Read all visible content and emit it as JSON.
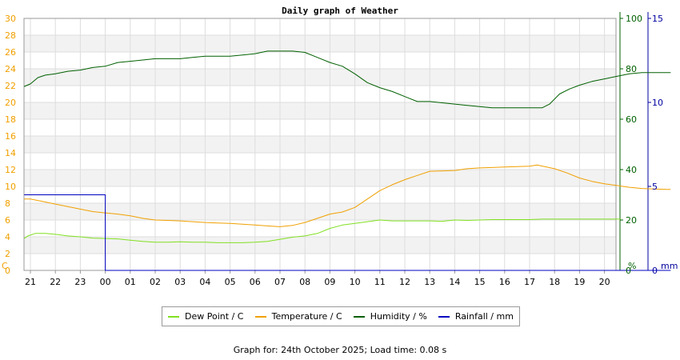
{
  "chart_data": {
    "type": "line",
    "title": "Daily graph of Weather",
    "x_tick_labels": [
      "21",
      "22",
      "23",
      "00",
      "01",
      "02",
      "03",
      "04",
      "05",
      "06",
      "07",
      "08",
      "09",
      "10",
      "11",
      "12",
      "13",
      "14",
      "15",
      "16",
      "17",
      "18",
      "19",
      "20"
    ],
    "left_axis": {
      "unit": "C",
      "ticks": [
        0,
        2,
        4,
        6,
        8,
        10,
        12,
        14,
        16,
        18,
        20,
        22,
        24,
        26,
        28,
        30
      ],
      "ylim": [
        0,
        30
      ],
      "color": "#f0a000"
    },
    "humidity_axis": {
      "unit": "%",
      "ticks": [
        0,
        20,
        40,
        60,
        80,
        100
      ],
      "ylim": [
        0,
        100
      ],
      "color": "#006000"
    },
    "rain_axis": {
      "unit": "mm",
      "ticks": [
        0,
        5,
        10,
        15
      ],
      "ylim": [
        0,
        15
      ],
      "color": "#0000a0"
    },
    "grid": true,
    "legend_position": "bottom",
    "series": [
      {
        "name": "Dew Point / C",
        "color": "#80e020",
        "axis": "left",
        "points": [
          [
            -0.25,
            3.8
          ],
          [
            -0.1,
            4.1
          ],
          [
            0.2,
            4.4
          ],
          [
            0.6,
            4.4
          ],
          [
            1.0,
            4.3
          ],
          [
            1.5,
            4.1
          ],
          [
            2.0,
            4.0
          ],
          [
            2.5,
            3.85
          ],
          [
            3.0,
            3.8
          ],
          [
            3.5,
            3.75
          ],
          [
            4.0,
            3.6
          ],
          [
            4.5,
            3.45
          ],
          [
            5.0,
            3.35
          ],
          [
            5.5,
            3.35
          ],
          [
            6.0,
            3.4
          ],
          [
            6.5,
            3.35
          ],
          [
            7.0,
            3.35
          ],
          [
            7.5,
            3.3
          ],
          [
            8.0,
            3.3
          ],
          [
            8.5,
            3.3
          ],
          [
            9.0,
            3.35
          ],
          [
            9.5,
            3.45
          ],
          [
            10.0,
            3.7
          ],
          [
            10.5,
            3.95
          ],
          [
            11.0,
            4.1
          ],
          [
            11.5,
            4.4
          ],
          [
            12.0,
            5.0
          ],
          [
            12.5,
            5.4
          ],
          [
            13.0,
            5.6
          ],
          [
            13.5,
            5.8
          ],
          [
            14.0,
            6.0
          ],
          [
            14.5,
            5.9
          ],
          [
            15.0,
            5.9
          ],
          [
            15.5,
            5.9
          ],
          [
            16.0,
            5.9
          ],
          [
            16.5,
            5.85
          ],
          [
            17.0,
            6.0
          ],
          [
            17.5,
            5.95
          ],
          [
            18.0,
            6.0
          ],
          [
            18.5,
            6.05
          ],
          [
            19.0,
            6.05
          ],
          [
            19.5,
            6.05
          ],
          [
            20.0,
            6.05
          ],
          [
            20.5,
            6.1
          ],
          [
            21.0,
            6.1
          ],
          [
            21.5,
            6.1
          ],
          [
            22.0,
            6.1
          ],
          [
            22.5,
            6.1
          ],
          [
            23.0,
            6.1
          ],
          [
            23.65,
            6.1
          ]
        ]
      },
      {
        "name": "Temperature / C",
        "color": "#f0a000",
        "axis": "left",
        "points": [
          [
            -0.25,
            8.5
          ],
          [
            0.0,
            8.5
          ],
          [
            0.5,
            8.2
          ],
          [
            1.0,
            7.9
          ],
          [
            1.5,
            7.6
          ],
          [
            2.0,
            7.3
          ],
          [
            2.5,
            7.0
          ],
          [
            3.0,
            6.85
          ],
          [
            3.5,
            6.7
          ],
          [
            4.0,
            6.5
          ],
          [
            4.5,
            6.2
          ],
          [
            5.0,
            6.0
          ],
          [
            5.5,
            5.95
          ],
          [
            6.0,
            5.9
          ],
          [
            6.5,
            5.8
          ],
          [
            7.0,
            5.7
          ],
          [
            7.5,
            5.65
          ],
          [
            8.0,
            5.6
          ],
          [
            8.5,
            5.5
          ],
          [
            9.0,
            5.4
          ],
          [
            9.5,
            5.3
          ],
          [
            10.0,
            5.2
          ],
          [
            10.5,
            5.35
          ],
          [
            11.0,
            5.7
          ],
          [
            11.5,
            6.2
          ],
          [
            12.0,
            6.7
          ],
          [
            12.5,
            6.95
          ],
          [
            13.0,
            7.5
          ],
          [
            13.5,
            8.5
          ],
          [
            14.0,
            9.5
          ],
          [
            14.5,
            10.2
          ],
          [
            15.0,
            10.8
          ],
          [
            15.5,
            11.3
          ],
          [
            16.0,
            11.8
          ],
          [
            16.5,
            11.85
          ],
          [
            17.0,
            11.9
          ],
          [
            17.5,
            12.1
          ],
          [
            18.0,
            12.2
          ],
          [
            18.5,
            12.25
          ],
          [
            19.0,
            12.3
          ],
          [
            19.5,
            12.35
          ],
          [
            20.0,
            12.4
          ],
          [
            20.3,
            12.55
          ],
          [
            20.6,
            12.35
          ],
          [
            21.0,
            12.1
          ],
          [
            21.5,
            11.6
          ],
          [
            22.0,
            11.0
          ],
          [
            22.5,
            10.6
          ],
          [
            23.0,
            10.3
          ],
          [
            23.5,
            10.1
          ],
          [
            24.0,
            9.9
          ],
          [
            24.5,
            9.75
          ],
          [
            25.0,
            9.7
          ],
          [
            25.5,
            9.65
          ],
          [
            25.65,
            9.65
          ]
        ]
      },
      {
        "name": "Humidity / %",
        "color": "#006000",
        "axis": "humidity",
        "points": [
          [
            -0.25,
            73.0
          ],
          [
            0.0,
            74.0
          ],
          [
            0.3,
            76.5
          ],
          [
            0.6,
            77.5
          ],
          [
            1.0,
            78.0
          ],
          [
            1.5,
            79.0
          ],
          [
            2.0,
            79.5
          ],
          [
            2.5,
            80.5
          ],
          [
            3.0,
            81.0
          ],
          [
            3.5,
            82.5
          ],
          [
            4.0,
            83.0
          ],
          [
            4.5,
            83.5
          ],
          [
            5.0,
            84.0
          ],
          [
            5.5,
            84.0
          ],
          [
            6.0,
            84.0
          ],
          [
            6.5,
            84.5
          ],
          [
            7.0,
            85.0
          ],
          [
            7.5,
            85.0
          ],
          [
            8.0,
            85.0
          ],
          [
            8.5,
            85.5
          ],
          [
            9.0,
            86.0
          ],
          [
            9.5,
            87.0
          ],
          [
            10.0,
            87.0
          ],
          [
            10.5,
            87.0
          ],
          [
            11.0,
            86.5
          ],
          [
            11.5,
            84.5
          ],
          [
            12.0,
            82.5
          ],
          [
            12.5,
            81.0
          ],
          [
            13.0,
            78.0
          ],
          [
            13.5,
            74.5
          ],
          [
            14.0,
            72.5
          ],
          [
            14.5,
            71.0
          ],
          [
            15.0,
            69.0
          ],
          [
            15.5,
            67.0
          ],
          [
            16.0,
            67.0
          ],
          [
            16.5,
            66.5
          ],
          [
            17.0,
            66.0
          ],
          [
            17.5,
            65.5
          ],
          [
            18.0,
            65.0
          ],
          [
            18.5,
            64.5
          ],
          [
            19.0,
            64.5
          ],
          [
            19.5,
            64.5
          ],
          [
            20.0,
            64.5
          ],
          [
            20.5,
            64.5
          ],
          [
            20.8,
            66.0
          ],
          [
            21.2,
            70.0
          ],
          [
            21.6,
            72.0
          ],
          [
            22.0,
            73.5
          ],
          [
            22.5,
            75.0
          ],
          [
            23.0,
            76.0
          ],
          [
            23.5,
            77.0
          ],
          [
            24.0,
            78.0
          ],
          [
            24.5,
            78.5
          ],
          [
            25.0,
            78.5
          ],
          [
            25.5,
            78.5
          ],
          [
            25.65,
            78.5
          ]
        ]
      },
      {
        "name": "Rainfall / mm",
        "color": "#0000c0",
        "axis": "rain",
        "points": [
          [
            -0.25,
            4.5
          ],
          [
            3.0,
            4.5
          ],
          [
            3.0,
            0.0
          ],
          [
            25.65,
            0.0
          ]
        ]
      }
    ]
  },
  "footer": {
    "text": "Graph for: 24th October 2025; Load time: 0.08 s"
  }
}
